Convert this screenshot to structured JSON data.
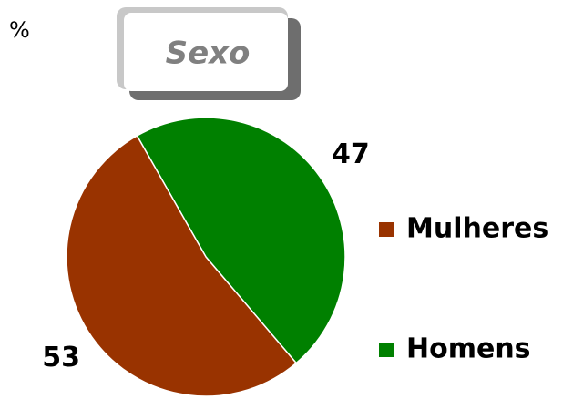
{
  "chart_data": {
    "type": "pie",
    "title": "Sexo",
    "unit": "%",
    "categories": [
      "Mulheres",
      "Homens"
    ],
    "values": [
      53,
      47
    ],
    "colors": [
      "#993300",
      "#008000"
    ],
    "legend": "right"
  }
}
